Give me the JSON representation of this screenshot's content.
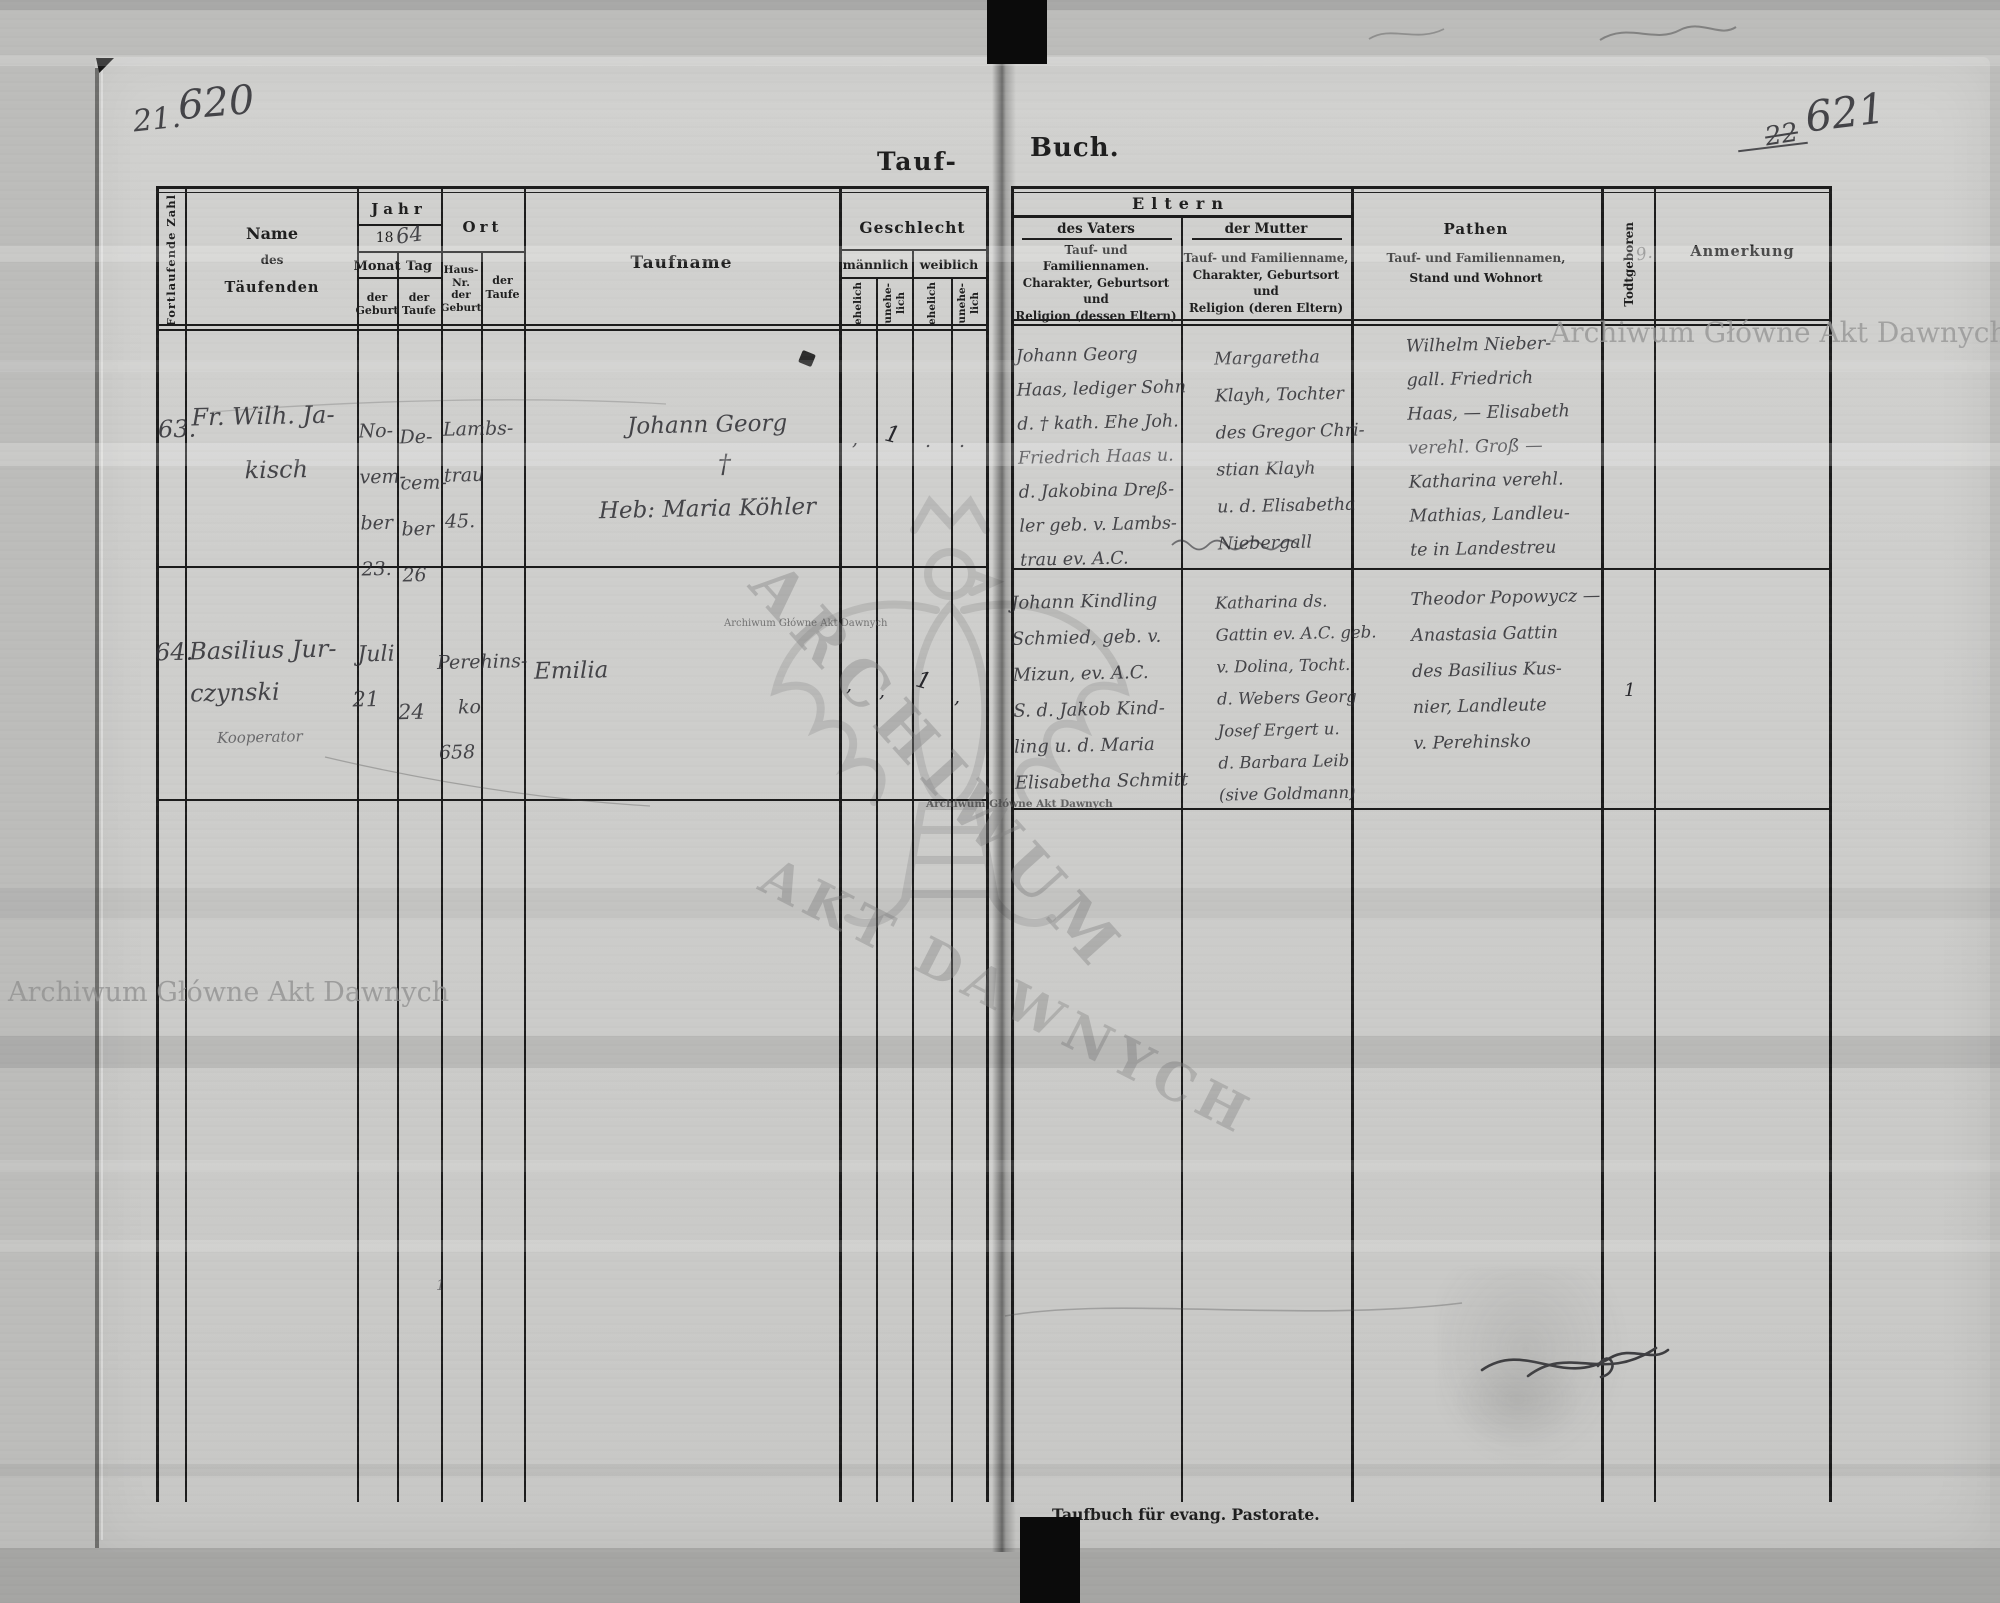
{
  "page_numbers": {
    "left_small": "21.",
    "left_big": "620",
    "right_small": "22",
    "right_big": "621"
  },
  "titles": {
    "left": "Tauf-",
    "right": "Buch.",
    "footer": "Taufbuch für evang. Pastorate."
  },
  "watermark": {
    "text": "Archiwum Główne Akt Dawnych",
    "diag1": "ARCHIWUM",
    "diag2": "AKT DAWNYCH"
  },
  "pencil_note": "9.",
  "stray_mark": "1",
  "left_table": {
    "serial": "Fortlaufende Zahl",
    "name": {
      "l1": "Name",
      "l2": "des",
      "l3": "Täufenden"
    },
    "year": {
      "group": "Jahr",
      "printed": "18",
      "handwritten": "64",
      "month": "Monat",
      "day": "Tag",
      "month_sub": [
        "der",
        "Geburt"
      ],
      "day_sub": [
        "der",
        "Taufe"
      ]
    },
    "place": {
      "group": "Ort",
      "sub1": [
        "Haus-",
        "Nr.",
        "der",
        "Geburt"
      ],
      "sub2": [
        "der",
        "Taufe"
      ]
    },
    "baptism_name": "Taufname",
    "sex": {
      "group": "Geschlecht",
      "male": "männlich",
      "female": "weiblich",
      "legitimate": "ehelich",
      "illegitimate_a": "unehe-",
      "illegitimate_b": "lich"
    }
  },
  "right_table": {
    "parents": {
      "group": "Eltern",
      "father": "des Vaters",
      "mother": "der Mutter",
      "father_desc": [
        "Tauf- und Familiennamen.",
        "Charakter, Geburtsort und",
        "Religion (dessen Eltern)"
      ],
      "mother_desc": [
        "Tauf- und Familienname,",
        "Charakter, Geburtsort und",
        "Religion (deren Eltern)"
      ]
    },
    "godparents": {
      "label": "Pathen",
      "desc": [
        "Tauf- und Familiennamen,",
        "Stand und Wohnort"
      ]
    },
    "stillborn": "Todtgeboren",
    "remark": "Anmerkung"
  },
  "records": [
    {
      "number": "63.",
      "name_lines": [
        "Fr. Wilh. Ja-",
        "kisch"
      ],
      "birth_month_lines": [
        "No-",
        "vem-",
        "ber",
        "23."
      ],
      "baptism_day_lines": [
        "De-",
        "cem-",
        "ber",
        "26"
      ],
      "house_lines": [
        "Lambs-",
        "trau",
        "45."
      ],
      "baptism_name_lines": [
        "Johann Georg",
        "†",
        "Heb: Maria Köhler"
      ],
      "sex_marks": {
        "m_eh": ",",
        "m_uneh": "1",
        "w_eh": ".",
        "w_uneh": "."
      },
      "father_lines": [
        "Johann Georg",
        "Haas, lediger Sohn",
        "d. † kath. Ehe Joh.",
        "Friedrich Haas u.",
        "d. Jakobina Dreß-",
        "ler geb. v. Lambs-",
        "trau ev. A.C."
      ],
      "mother_lines": [
        "Margaretha",
        "Klayh, Tochter",
        "des Gregor Chri-",
        "stian Klayh",
        "u. d. Elisabetha",
        "Niebergall"
      ],
      "godparent_lines": [
        "Wilhelm Nieber-",
        "gall. Friedrich",
        "Haas, — Elisabeth",
        "verehl. Groß —",
        "Katharina verehl.",
        "Mathias, Landleu-",
        "te in Landestreu"
      ],
      "stillborn_mark": "",
      "remark": ""
    },
    {
      "number": "64.",
      "name_lines": [
        "Basilius Jur-",
        "czynski",
        "Kooperator"
      ],
      "birth_month_lines": [
        "Juli",
        "21"
      ],
      "baptism_day_lines": [
        "24"
      ],
      "house_lines": [
        "Perehins-",
        "ko",
        "658"
      ],
      "baptism_name_lines": [
        "Emilia"
      ],
      "sex_marks": {
        "m_eh": ",",
        "m_uneh": ",",
        "w_eh": "1",
        "w_uneh": ","
      },
      "father_lines": [
        "Johann Kindling",
        "Schmied, geb. v.",
        "Mizun, ev. A.C.",
        "S. d. Jakob Kind-",
        "ling u. d. Maria",
        "Elisabetha Schmitt"
      ],
      "mother_lines": [
        "Katharina ds.",
        "Gattin ev. A.C. geb.",
        "v. Dolina, Tocht.",
        "d. Webers Georg",
        "Josef Ergert u.",
        "d. Barbara Leib",
        "(sive Goldmann)"
      ],
      "godparent_lines": [
        "Theodor Popowycz —",
        "Anastasia Gattin",
        "des Basilius Kus-",
        "nier, Landleute",
        "v. Perehinsko"
      ],
      "stillborn_mark": "1",
      "remark": ""
    }
  ]
}
